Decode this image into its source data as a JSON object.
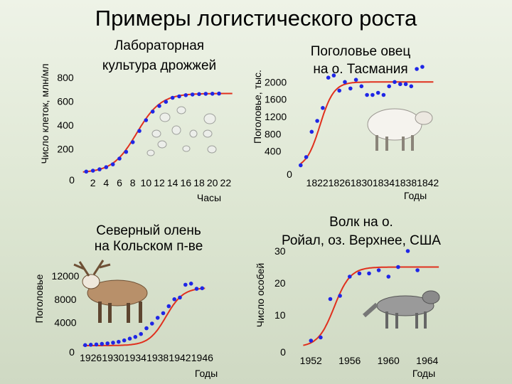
{
  "slide": {
    "title": "Примеры логистического роста"
  },
  "colors": {
    "curve": "#e0301e",
    "point": "#1f26e6",
    "background": "#e6ede0"
  },
  "chart_data": [
    {
      "id": "yeast",
      "type": "scatter",
      "title": "Лабораторная культура дрожжей",
      "ylabel": "Число клеток, млн/мл",
      "xlabel": "Часы",
      "x_ticks": [
        "2",
        "4",
        "6",
        "8",
        "10",
        "12",
        "14",
        "16",
        "18",
        "20",
        "22"
      ],
      "y_ticks": [
        "200",
        "400",
        "600",
        "800"
      ],
      "zero_label": "0",
      "xlim": [
        0,
        24
      ],
      "ylim": [
        0,
        900
      ],
      "points": [
        [
          1,
          10
        ],
        [
          2,
          18
        ],
        [
          3,
          29
        ],
        [
          4,
          47
        ],
        [
          5,
          71
        ],
        [
          6,
          119
        ],
        [
          7,
          175
        ],
        [
          8,
          257
        ],
        [
          9,
          351
        ],
        [
          10,
          441
        ],
        [
          11,
          513
        ],
        [
          12,
          560
        ],
        [
          13,
          595
        ],
        [
          14,
          629
        ],
        [
          15,
          641
        ],
        [
          16,
          651
        ],
        [
          17,
          656
        ],
        [
          18,
          660
        ],
        [
          19,
          662
        ],
        [
          20,
          663
        ],
        [
          21,
          664
        ]
      ],
      "curve": {
        "K": 665,
        "r": 0.55,
        "t0": 8.6
      },
      "curve_range": [
        0.5,
        23
      ]
    },
    {
      "id": "sheep",
      "type": "scatter",
      "title": "Поголовье овец на о. Тасмания",
      "ylabel": "Поголовье, тыс.",
      "xlabel": "Годы",
      "x_ticks": [
        "1822",
        "1826",
        "1830",
        "1834",
        "1838",
        "1842"
      ],
      "y_ticks": [
        "400",
        "800",
        "1200",
        "1600",
        "2000"
      ],
      "zero_label": "0",
      "xlim": [
        1818,
        1845
      ],
      "ylim": [
        0,
        2300
      ],
      "points": [
        [
          1819,
          75
        ],
        [
          1820,
          265
        ],
        [
          1821,
          850
        ],
        [
          1822,
          1100
        ],
        [
          1823,
          1400
        ],
        [
          1824,
          2100
        ],
        [
          1825,
          2150
        ],
        [
          1826,
          1800
        ],
        [
          1827,
          2000
        ],
        [
          1828,
          1850
        ],
        [
          1829,
          2050
        ],
        [
          1830,
          1900
        ],
        [
          1831,
          1700
        ],
        [
          1832,
          1700
        ],
        [
          1833,
          1750
        ],
        [
          1834,
          1700
        ],
        [
          1835,
          1900
        ],
        [
          1836,
          2000
        ],
        [
          1837,
          1950
        ],
        [
          1838,
          1950
        ],
        [
          1839,
          1900
        ],
        [
          1840,
          2300
        ],
        [
          1841,
          2350
        ]
      ],
      "curve": {
        "K": 2000,
        "r": 0.8,
        "t0": 1822.5
      },
      "curve_range": [
        1819,
        1843
      ]
    },
    {
      "id": "reindeer",
      "type": "scatter",
      "title": "Северный олень на Кольском п-ве",
      "ylabel": "Поголовье",
      "xlabel": "Годы",
      "x_ticks": [
        "1926",
        "1930",
        "1934",
        "1938",
        "1942",
        "1946"
      ],
      "y_ticks": [
        "4000",
        "8000",
        "12000"
      ],
      "zero_label": "0",
      "xlim": [
        1924,
        1948
      ],
      "ylim": [
        0,
        13500
      ],
      "points": [
        [
          1925,
          80
        ],
        [
          1926,
          150
        ],
        [
          1927,
          200
        ],
        [
          1928,
          300
        ],
        [
          1929,
          380
        ],
        [
          1930,
          500
        ],
        [
          1931,
          650
        ],
        [
          1932,
          900
        ],
        [
          1933,
          1200
        ],
        [
          1934,
          1500
        ],
        [
          1935,
          2000
        ],
        [
          1936,
          3000
        ],
        [
          1937,
          3800
        ],
        [
          1938,
          4800
        ],
        [
          1939,
          5600
        ],
        [
          1940,
          6800
        ],
        [
          1941,
          8000
        ],
        [
          1942,
          8300
        ],
        [
          1943,
          10500
        ],
        [
          1944,
          10700
        ],
        [
          1945,
          9800
        ],
        [
          1946,
          9900
        ]
      ],
      "curve": {
        "K": 10000,
        "r": 0.65,
        "t0": 1939.5
      },
      "curve_range": [
        1924.6,
        1946.5
      ]
    },
    {
      "id": "wolf",
      "type": "scatter",
      "title": "Волк на о. Ройал, оз. Верхнее, США",
      "ylabel": "Число особей",
      "xlabel": "Годы",
      "x_ticks": [
        "1952",
        "1956",
        "1960",
        "1964"
      ],
      "y_ticks": [
        "10",
        "20",
        "30"
      ],
      "zero_label": "0",
      "xlim": [
        1950,
        1966
      ],
      "ylim": [
        0,
        32
      ],
      "points": [
        [
          1952,
          2
        ],
        [
          1953,
          3
        ],
        [
          1954,
          15
        ],
        [
          1955,
          16
        ],
        [
          1956,
          22
        ],
        [
          1957,
          23
        ],
        [
          1958,
          23
        ],
        [
          1959,
          24
        ],
        [
          1960,
          22
        ],
        [
          1961,
          25
        ],
        [
          1962,
          30
        ],
        [
          1963,
          24
        ]
      ],
      "curve": {
        "K": 25,
        "r": 1.2,
        "t0": 1954.4
      },
      "curve_range": [
        1951.2,
        1965.2
      ]
    }
  ]
}
